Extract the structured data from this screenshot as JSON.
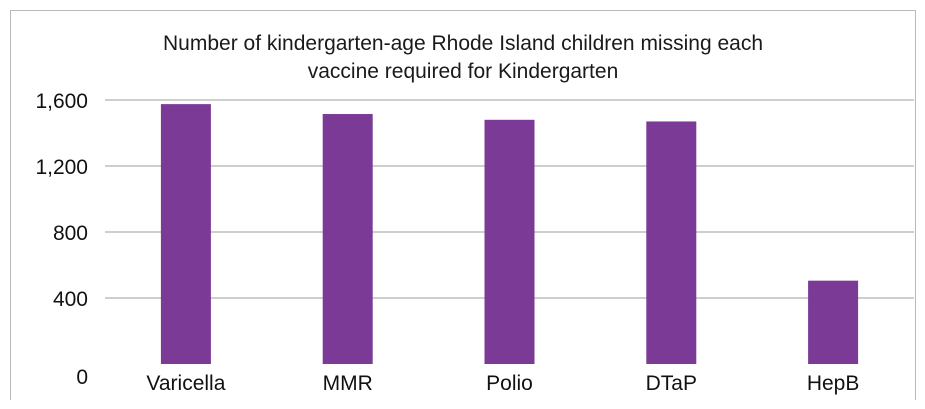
{
  "chart_data": {
    "type": "bar",
    "title_lines": [
      "Number of kindergarten-age Rhode Island children missing each",
      "vaccine required for Kindergarten"
    ],
    "categories": [
      "Varicella",
      "MMR",
      "Polio",
      "DTaP",
      "HepB"
    ],
    "values": [
      1575,
      1515,
      1480,
      1470,
      505
    ],
    "y_ticks": [
      "0",
      "400",
      "800",
      "1,200",
      "1,600"
    ],
    "y_tick_values": [
      0,
      400,
      800,
      1200,
      1600
    ],
    "ylim": [
      0,
      1600
    ],
    "grid": true,
    "legend": false,
    "bar_color": "#7b3a96",
    "grid_color": "#9e9e9e"
  }
}
